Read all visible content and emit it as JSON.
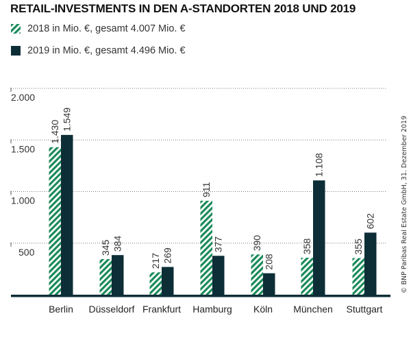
{
  "chart_data": {
    "type": "bar",
    "title": "RETAIL-INVESTMENTS IN DEN A-STANDORTEN 2018 UND 2019",
    "categories": [
      "Berlin",
      "Düsseldorf",
      "Frankfurt",
      "Hamburg",
      "Köln",
      "München",
      "Stuttgart"
    ],
    "series": [
      {
        "name": "2018 in Mio. €, gesamt 4.007 Mio. €",
        "values": [
          1430,
          345,
          217,
          911,
          390,
          358,
          355
        ],
        "labels": [
          "1.430",
          "345",
          "217",
          "911",
          "390",
          "358",
          "355"
        ],
        "color": "#1a8a5a",
        "pattern": "hatched"
      },
      {
        "name": "2019 in Mio. €, gesamt 4.496 Mio. €",
        "values": [
          1549,
          384,
          269,
          377,
          208,
          1108,
          602
        ],
        "labels": [
          "1.549",
          "384",
          "269",
          "377",
          "208",
          "1.108",
          "602"
        ],
        "color": "#0d2e36",
        "pattern": "solid"
      }
    ],
    "yticks": [
      500,
      1000,
      1500,
      2000
    ],
    "ytick_labels": [
      "500",
      "1.000",
      "1.500",
      "2.000"
    ],
    "ylim": [
      0,
      2000
    ],
    "grid": true,
    "legend": "top-left"
  },
  "copyright": "© BNP Paribas Real Estate GmbH, 31. Dezember 2019"
}
